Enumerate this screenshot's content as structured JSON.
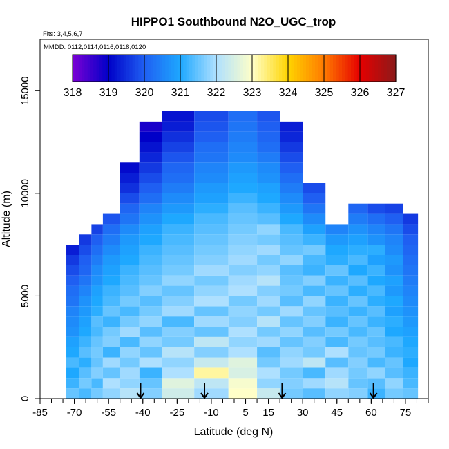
{
  "chart_data": {
    "type": "heatmap",
    "title": "HIPPO1 Southbound N2O_UGC_trop",
    "annotations": [
      "Flts: 3,4,5,6,7",
      "MMDD: 0112,0114,0116,0118,0120"
    ],
    "xlabel": "Latitude (deg N)",
    "ylabel": "Altitude (m)",
    "xlim": [
      -85,
      85
    ],
    "ylim": [
      0,
      17500
    ],
    "x_ticks": [
      -85,
      -70,
      -55,
      -40,
      -25,
      -10,
      5,
      15,
      30,
      45,
      60,
      75
    ],
    "x_tick_labels": [
      "-85",
      "-70",
      "-55",
      "-40",
      "-25",
      "-10",
      "5",
      "15",
      "30",
      "45",
      "60",
      "75"
    ],
    "y_ticks": [
      0,
      5000,
      10000,
      15000
    ],
    "y_tick_labels": [
      "0",
      "5000",
      "10000",
      "15000"
    ],
    "colorbar": {
      "range": [
        318,
        327
      ],
      "ticks": [
        318,
        319,
        320,
        321,
        322,
        323,
        324,
        325,
        326,
        327
      ],
      "tick_labels": [
        "318",
        "319",
        "320",
        "321",
        "322",
        "323",
        "324",
        "325",
        "326",
        "327"
      ],
      "colors": [
        "#7b00d4",
        "#0000c8",
        "#1f5ff2",
        "#1ea8ff",
        "#aee0ff",
        "#ffffc8",
        "#ffd400",
        "#ff7a00",
        "#e60000",
        "#8b1a1a"
      ]
    },
    "arrow_latitudes": [
      -41,
      -13,
      21,
      61
    ],
    "profile_extents": [
      {
        "lat": -71,
        "top": 7500
      },
      {
        "lat": -65,
        "top": 8200
      },
      {
        "lat": -60,
        "top": 8700
      },
      {
        "lat": -55,
        "top": 9000
      },
      {
        "lat": -45,
        "top": 11500
      },
      {
        "lat": -38,
        "top": 13500
      },
      {
        "lat": -25,
        "top": 13800
      },
      {
        "lat": -10,
        "top": 13800
      },
      {
        "lat": 5,
        "top": 13800
      },
      {
        "lat": 15,
        "top": 13800
      },
      {
        "lat": 25,
        "top": 13500
      },
      {
        "lat": 35,
        "top": 10500
      },
      {
        "lat": 45,
        "top": 8500
      },
      {
        "lat": 55,
        "top": 9500
      },
      {
        "lat": 62,
        "top": 9200
      },
      {
        "lat": 70,
        "top": 9300
      },
      {
        "lat": 78,
        "top": 8500
      }
    ],
    "rows": [
      {
        "alt": 250,
        "values": [
          321.5,
          321.3,
          321.6,
          321.8,
          322.1,
          321.7,
          322.4,
          321.9,
          323.0,
          322.3,
          321.6,
          321.4,
          321.8,
          321.7,
          321.2,
          321.6,
          321.5
        ]
      },
      {
        "alt": 750,
        "values": [
          321.2,
          321.6,
          321.3,
          322.0,
          321.8,
          321.5,
          322.6,
          322.2,
          322.9,
          321.8,
          321.7,
          321.9,
          322.1,
          321.5,
          321.4,
          321.8,
          321.3
        ]
      },
      {
        "alt": 1250,
        "values": [
          321.0,
          321.4,
          321.7,
          321.5,
          321.9,
          321.2,
          322.0,
          323.2,
          322.5,
          322.0,
          321.6,
          321.3,
          321.9,
          321.6,
          321.8,
          321.4,
          321.2
        ]
      },
      {
        "alt": 1750,
        "values": [
          321.3,
          321.1,
          321.5,
          321.9,
          321.6,
          322.0,
          321.8,
          322.3,
          322.6,
          321.6,
          321.9,
          322.2,
          321.4,
          321.7,
          321.3,
          321.5,
          321.0
        ]
      },
      {
        "alt": 2250,
        "values": [
          321.0,
          321.4,
          321.6,
          321.2,
          321.8,
          321.5,
          322.1,
          321.7,
          322.0,
          321.4,
          321.8,
          321.6,
          322.0,
          321.5,
          321.6,
          321.2,
          321.1
        ]
      },
      {
        "alt": 2750,
        "values": [
          320.9,
          321.2,
          321.5,
          321.7,
          321.3,
          321.8,
          321.6,
          322.2,
          321.8,
          321.9,
          321.5,
          321.7,
          321.3,
          321.6,
          321.4,
          321.3,
          321.0
        ]
      },
      {
        "alt": 3250,
        "values": [
          320.7,
          321.0,
          321.3,
          321.6,
          321.9,
          321.4,
          321.7,
          321.5,
          322.0,
          321.6,
          321.8,
          321.4,
          321.6,
          321.3,
          321.5,
          321.0,
          320.9
        ]
      },
      {
        "alt": 3750,
        "values": [
          320.6,
          320.9,
          321.4,
          321.2,
          321.6,
          321.8,
          321.3,
          321.9,
          321.7,
          322.1,
          321.5,
          321.7,
          321.2,
          321.5,
          321.2,
          321.1,
          320.8
        ]
      },
      {
        "alt": 4250,
        "values": [
          320.5,
          320.8,
          321.1,
          321.5,
          321.3,
          321.6,
          321.9,
          321.5,
          321.8,
          321.6,
          321.9,
          321.5,
          321.4,
          321.2,
          321.4,
          320.9,
          320.7
        ]
      },
      {
        "alt": 4750,
        "values": [
          320.3,
          320.7,
          321.0,
          321.3,
          321.6,
          321.4,
          321.7,
          322.0,
          321.6,
          321.9,
          321.4,
          321.8,
          321.2,
          321.5,
          321.1,
          321.0,
          320.6
        ]
      },
      {
        "alt": 5250,
        "values": [
          320.2,
          320.5,
          320.9,
          321.2,
          321.4,
          321.7,
          321.5,
          321.8,
          322.0,
          321.7,
          321.6,
          321.3,
          321.5,
          321.1,
          321.3,
          320.8,
          320.5
        ]
      },
      {
        "alt": 5750,
        "values": [
          320.0,
          320.3,
          320.7,
          321.0,
          321.3,
          321.5,
          321.8,
          321.6,
          321.9,
          322.1,
          321.5,
          321.7,
          321.2,
          321.4,
          321.0,
          320.9,
          320.4
        ]
      },
      {
        "alt": 6250,
        "values": [
          319.8,
          320.1,
          320.6,
          320.9,
          321.2,
          321.4,
          321.6,
          321.9,
          321.7,
          321.8,
          321.4,
          321.2,
          321.5,
          321.0,
          321.2,
          320.7,
          320.3
        ]
      },
      {
        "alt": 6750,
        "values": [
          319.6,
          320.0,
          320.4,
          320.8,
          321.0,
          321.3,
          321.5,
          321.7,
          321.9,
          321.6,
          321.8,
          321.3,
          321.1,
          321.3,
          320.9,
          320.8,
          320.2
        ]
      },
      {
        "alt": 7250,
        "values": [
          319.3,
          319.8,
          320.2,
          320.6,
          320.9,
          321.2,
          321.4,
          321.6,
          321.8,
          321.9,
          321.5,
          321.6,
          321.0,
          321.1,
          321.1,
          320.6,
          320.1
        ]
      },
      {
        "alt": 7750,
        "values": [
          null,
          319.6,
          320.0,
          320.4,
          320.8,
          321.0,
          321.3,
          321.5,
          321.7,
          321.6,
          321.4,
          321.2,
          320.8,
          320.9,
          320.7,
          320.5,
          320.0
        ]
      },
      {
        "alt": 8250,
        "values": [
          null,
          null,
          319.7,
          320.2,
          320.6,
          320.9,
          321.2,
          321.4,
          321.6,
          321.8,
          321.3,
          320.9,
          320.5,
          320.7,
          320.5,
          320.3,
          319.8
        ]
      },
      {
        "alt": 8750,
        "values": [
          null,
          null,
          null,
          319.9,
          320.3,
          320.7,
          321.0,
          321.3,
          321.5,
          321.4,
          321.0,
          320.6,
          null,
          320.4,
          320.2,
          320.0,
          319.6
        ]
      },
      {
        "alt": 9250,
        "values": [
          null,
          null,
          null,
          null,
          320.1,
          320.5,
          320.8,
          321.1,
          321.4,
          321.2,
          320.8,
          320.3,
          null,
          320.1,
          319.8,
          319.7,
          null
        ]
      },
      {
        "alt": 9750,
        "values": [
          null,
          null,
          null,
          null,
          319.8,
          320.2,
          320.6,
          320.9,
          321.2,
          321.0,
          320.6,
          320.0,
          null,
          null,
          null,
          null,
          null
        ]
      },
      {
        "alt": 10250,
        "values": [
          null,
          null,
          null,
          null,
          319.5,
          320.0,
          320.4,
          320.8,
          321.0,
          320.9,
          320.4,
          319.8,
          null,
          null,
          null,
          null,
          null
        ]
      },
      {
        "alt": 10750,
        "values": [
          null,
          null,
          null,
          null,
          319.3,
          319.8,
          320.2,
          320.6,
          320.9,
          320.7,
          320.2,
          null,
          null,
          null,
          null,
          null,
          null
        ]
      },
      {
        "alt": 11250,
        "values": [
          null,
          null,
          null,
          null,
          319.1,
          319.6,
          320.1,
          320.5,
          320.8,
          320.6,
          320.0,
          null,
          null,
          null,
          null,
          null,
          null
        ]
      },
      {
        "alt": 11750,
        "values": [
          null,
          null,
          null,
          null,
          null,
          319.4,
          319.9,
          320.3,
          320.6,
          320.4,
          319.8,
          null,
          null,
          null,
          null,
          null,
          null
        ]
      },
      {
        "alt": 12250,
        "values": [
          null,
          null,
          null,
          null,
          null,
          319.2,
          319.7,
          320.2,
          320.5,
          320.2,
          319.6,
          null,
          null,
          null,
          null,
          null,
          null
        ]
      },
      {
        "alt": 12750,
        "values": [
          null,
          null,
          null,
          null,
          null,
          319.0,
          319.5,
          320.0,
          320.4,
          320.1,
          319.4,
          null,
          null,
          null,
          null,
          null,
          null
        ]
      },
      {
        "alt": 13250,
        "values": [
          null,
          null,
          null,
          null,
          null,
          318.8,
          319.3,
          319.9,
          320.3,
          320.0,
          319.3,
          null,
          null,
          null,
          null,
          null,
          null
        ]
      },
      {
        "alt": 13750,
        "values": [
          null,
          null,
          null,
          null,
          null,
          null,
          319.2,
          319.8,
          320.2,
          319.9,
          null,
          null,
          null,
          null,
          null,
          null,
          null
        ]
      }
    ]
  }
}
